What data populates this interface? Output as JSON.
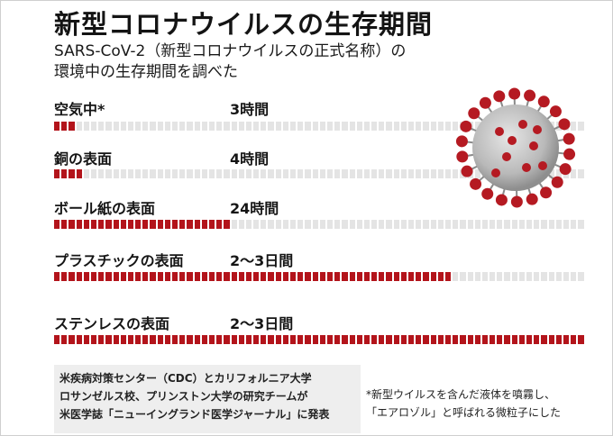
{
  "title": "新型コロナウイルスの生存期間",
  "subtitle_line1": "SARS-CoV-2（新型コロナウイルスの正式名称）の",
  "subtitle_line2": "環境中の生存期間を調べた",
  "rows": [
    {
      "label": "空気中*",
      "value": "3時間",
      "fraction": 0.0417
    },
    {
      "label": "銅の表面",
      "value": "4時間",
      "fraction": 0.0556
    },
    {
      "label": "ボール紙の表面",
      "value": "24時間",
      "fraction": 0.3333
    },
    {
      "label": "プラスチックの表面",
      "value": "2〜3日間",
      "fraction": 0.75
    },
    {
      "label": "ステンレスの表面",
      "value": "2〜3日間",
      "fraction": 1.0
    }
  ],
  "source_lines": [
    "米疾病対策センター（CDC）とカリフォルニア大学",
    "ロサンゼルス校、プリンストン大学の研究チームが",
    "米医学誌「ニューイングランド医学ジャーナル」に発表"
  ],
  "note_lines": [
    "*新型ウイルスを含んだ液体を噴霧し、",
    "「エアロゾル」と呼ばれる微粒子にした"
  ],
  "colors": {
    "bar_fill": "#b3141b",
    "bar_empty": "#e4e4e4",
    "virus_body": "#c9c9c9",
    "virus_spike": "#b51a22"
  },
  "illustration": "coronavirus-illustration"
}
